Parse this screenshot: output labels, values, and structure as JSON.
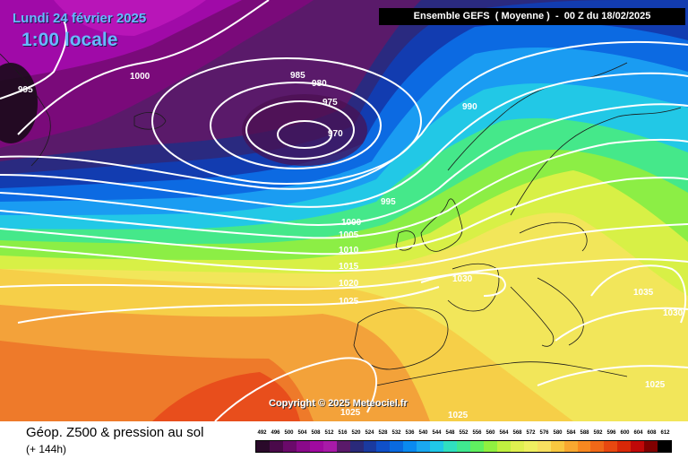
{
  "header": {
    "date": "Lundi 24 février 2025",
    "time": "1:00 locale",
    "run": "Ensemble GEFS  ( Moyenne )  -  00 Z du 18/02/2025"
  },
  "copyright": "Copyright © 2025 Meteociel.fr",
  "footer": {
    "title": "Géop. Z500 & pression au sol",
    "subtitle": "(+ 144h)"
  },
  "scale": {
    "labels": [
      "492",
      "496",
      "500",
      "504",
      "508",
      "512",
      "516",
      "520",
      "524",
      "528",
      "532",
      "536",
      "540",
      "544",
      "548",
      "552",
      "556",
      "560",
      "564",
      "568",
      "572",
      "576",
      "580",
      "584",
      "588",
      "592",
      "596",
      "600",
      "604",
      "608",
      "612"
    ],
    "colors": [
      "#2a0a2a",
      "#4a0a4a",
      "#6a0a6a",
      "#8a0a8a",
      "#a00aa0",
      "#a81aa8",
      "#5a1a6a",
      "#2a2a7a",
      "#1a3aa0",
      "#1050c8",
      "#0a6ae0",
      "#0a8af0",
      "#1aa8f0",
      "#20c8e8",
      "#30e0c0",
      "#40e890",
      "#60f060",
      "#90f040",
      "#c0f040",
      "#e0f050",
      "#f0f060",
      "#f8e060",
      "#f8c840",
      "#f8a830",
      "#f88820",
      "#f06818",
      "#e84810",
      "#d82808",
      "#c00808",
      "#800000",
      "#000000"
    ]
  },
  "isobars": [
    "995",
    "1000",
    "985",
    "980",
    "975",
    "970",
    "990",
    "995",
    "1000",
    "1005",
    "1010",
    "1015",
    "1020",
    "1025",
    "1030",
    "1035",
    "1030",
    "1025",
    "1025",
    "1025"
  ]
}
